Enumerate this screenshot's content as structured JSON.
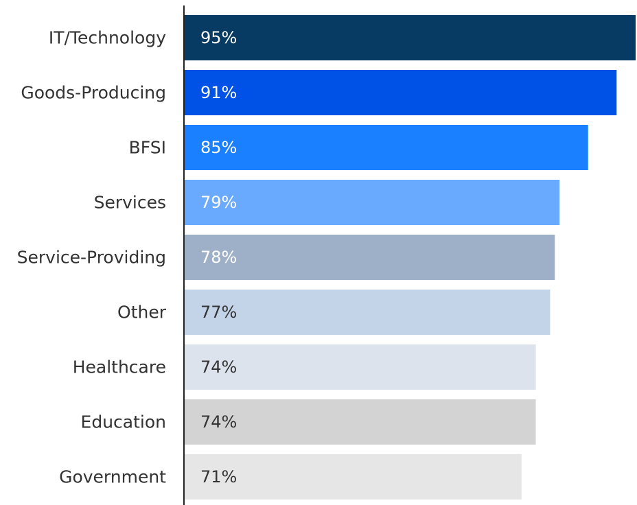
{
  "chart_data": {
    "type": "bar",
    "orientation": "horizontal",
    "title": "",
    "xlabel": "",
    "ylabel": "",
    "categories": [
      "IT/Technology",
      "Goods-Producing",
      "BFSI",
      "Services",
      "Service-Providing",
      "Other",
      "Healthcare",
      "Education",
      "Government"
    ],
    "values": [
      95,
      91,
      85,
      79,
      78,
      77,
      74,
      74,
      71
    ],
    "value_labels": [
      "95%",
      "91%",
      "85%",
      "79%",
      "78%",
      "77%",
      "74%",
      "74%",
      "71%"
    ],
    "colors": [
      "#073B63",
      "#0052E6",
      "#1A80FF",
      "#69AAFF",
      "#9EAFC8",
      "#C3D3E8",
      "#DCE3ED",
      "#D3D3D3",
      "#E6E6E6"
    ],
    "label_colors": [
      "#FFFFFF",
      "#FFFFFF",
      "#FFFFFF",
      "#FFFFFF",
      "#FFFFFF",
      "#333333",
      "#333333",
      "#333333",
      "#333333"
    ],
    "xlim": [
      0,
      95
    ],
    "grid": false,
    "legend": "none",
    "axis_color": "#222222"
  }
}
